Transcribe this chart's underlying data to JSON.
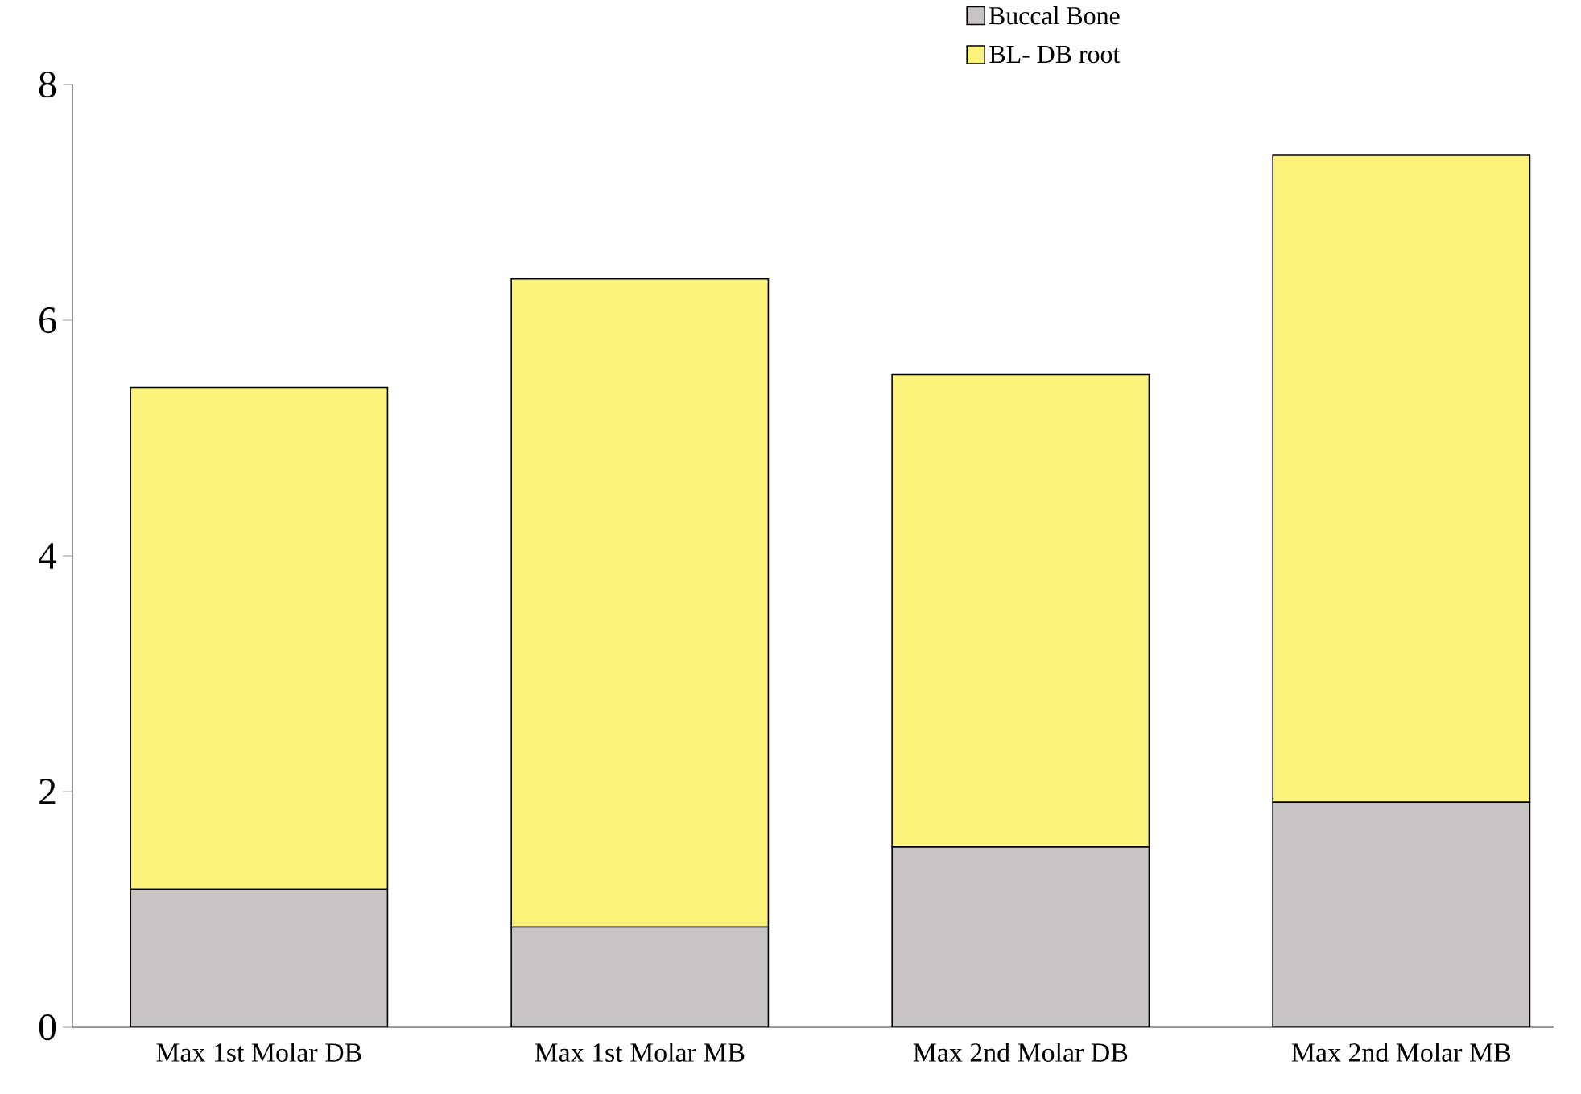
{
  "chart_data": {
    "type": "bar",
    "stacked": true,
    "categories": [
      "Max 1st Molar DB",
      "Max 1st Molar MB",
      "Max 2nd Molar DB",
      "Max 2nd Molar MB"
    ],
    "series": [
      {
        "name": "Buccal Bone",
        "color": "#c8c4c4",
        "values": [
          1.17,
          0.85,
          1.53,
          1.91
        ]
      },
      {
        "name": "BL- DB root",
        "color": "#fbf27c",
        "values": [
          4.26,
          5.5,
          4.01,
          5.49
        ]
      }
    ],
    "ylim": [
      0,
      8
    ],
    "yticks": [
      0,
      2,
      4,
      6,
      8
    ],
    "legend": "top right",
    "grid": false
  }
}
